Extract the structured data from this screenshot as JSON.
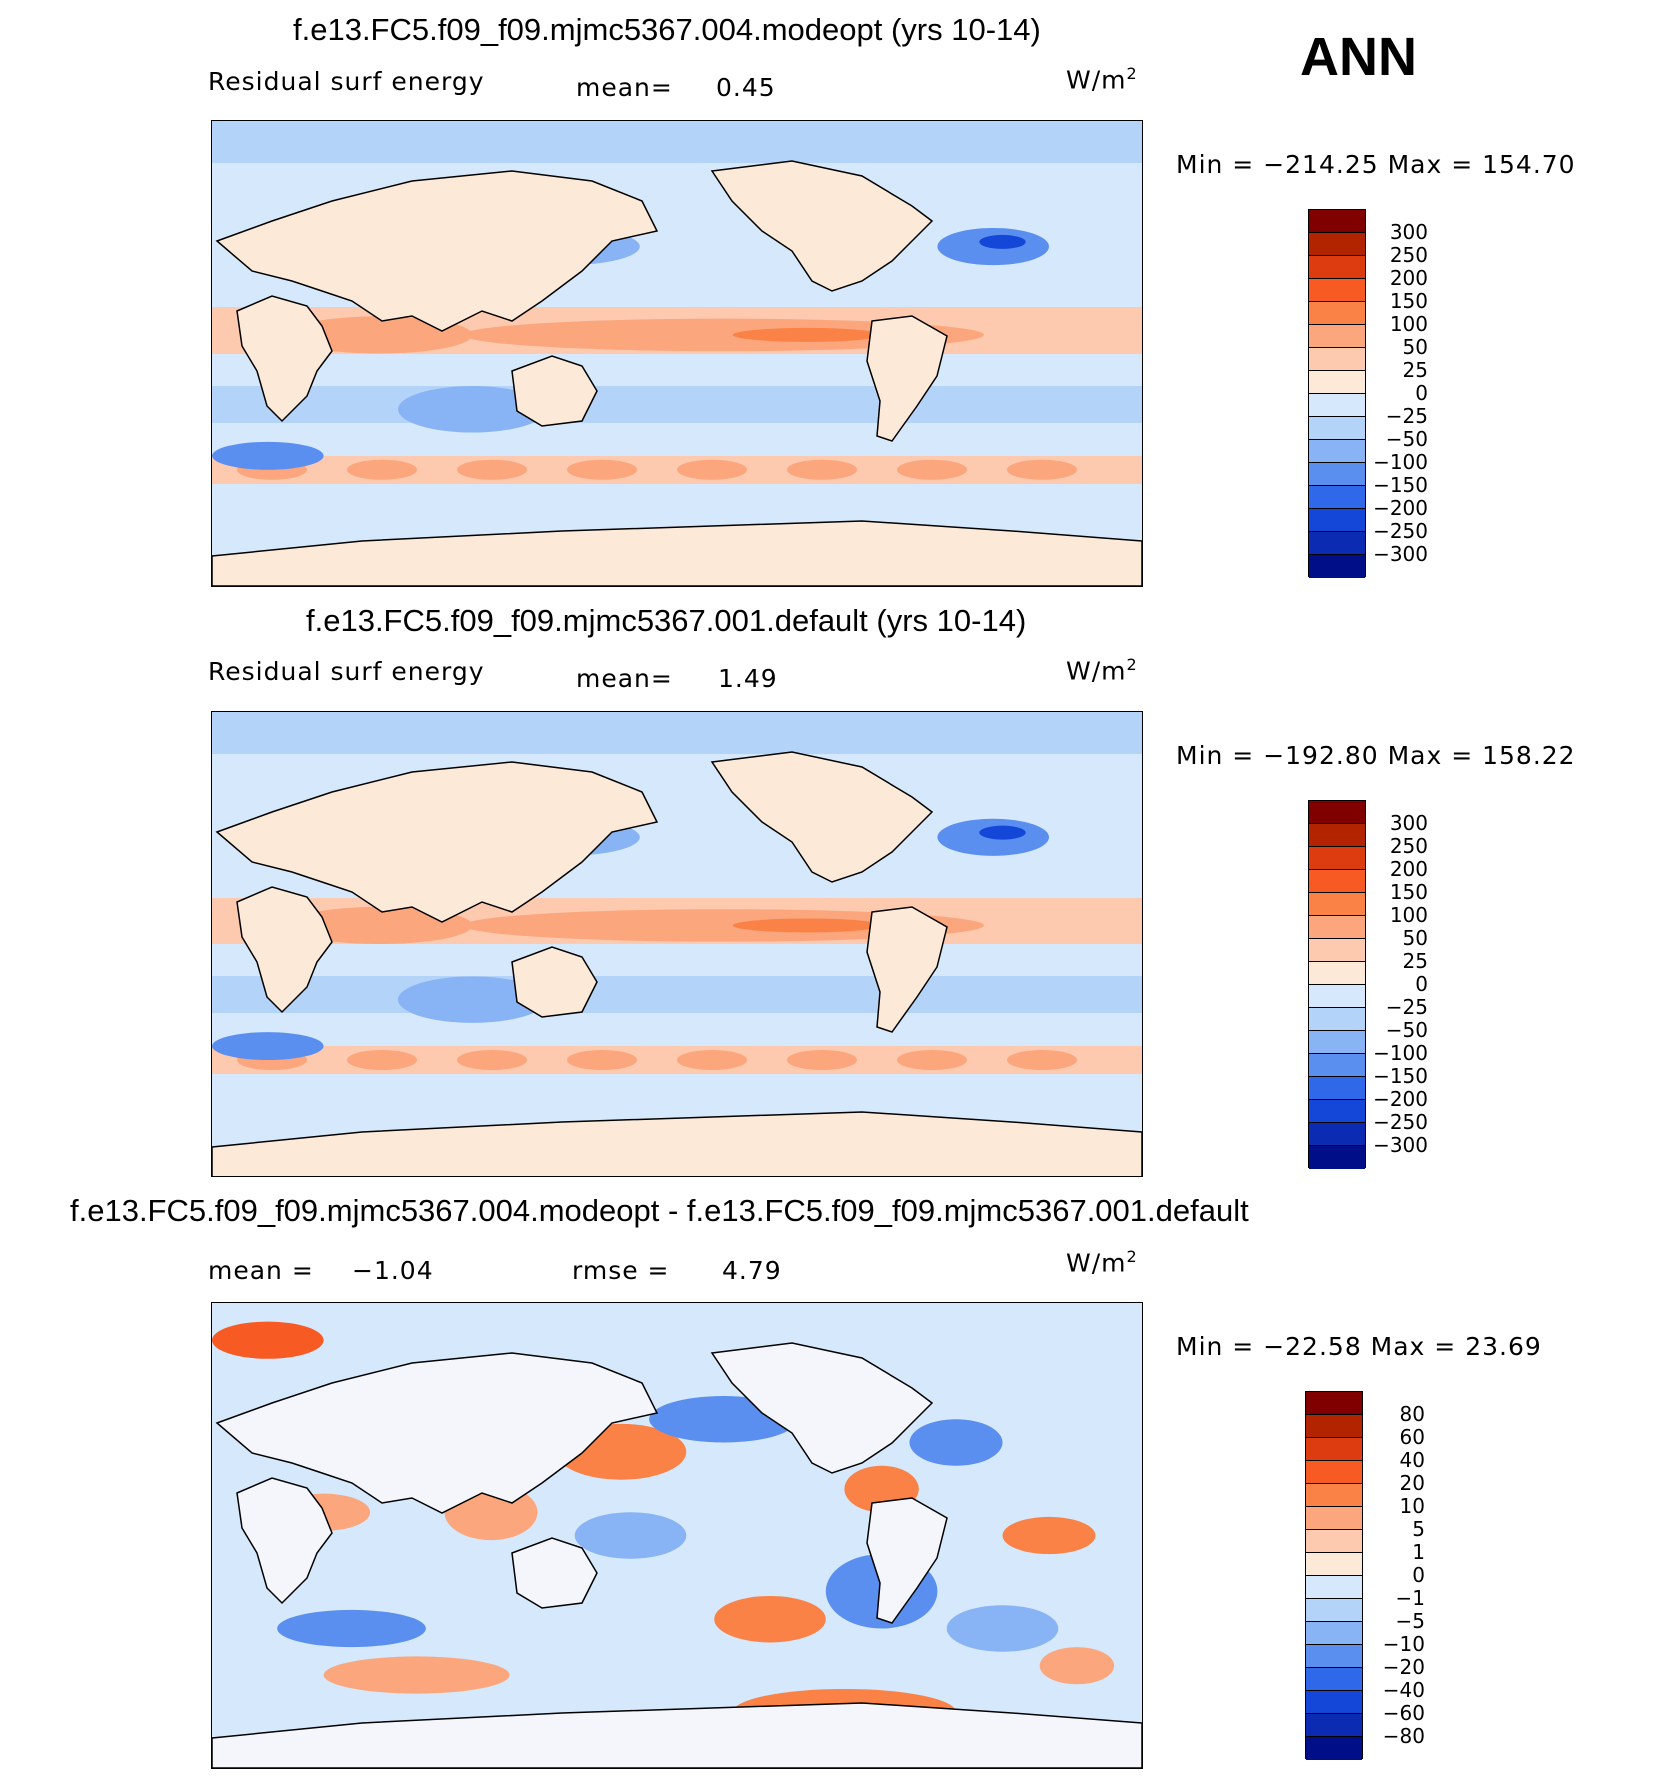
{
  "figure_label": "ANN",
  "units_base": "W/m",
  "units_exp": "2",
  "panels": [
    {
      "title": "f.e13.FC5.f09_f09.mjmc5367.004.modeopt (yrs 10-14)",
      "variable": "Residual surf energy",
      "stat1_label": "mean=",
      "stat1_value": "0.45",
      "minmax": "Min = −214.25 Max = 154.70"
    },
    {
      "title": "f.e13.FC5.f09_f09.mjmc5367.001.default (yrs 10-14)",
      "variable": "Residual surf energy",
      "stat1_label": "mean=",
      "stat1_value": "1.49",
      "minmax": "Min = −192.80 Max = 158.22"
    },
    {
      "title": "f.e13.FC5.f09_f09.mjmc5367.004.modeopt - f.e13.FC5.f09_f09.mjmc5367.001.default",
      "stat1_label": "mean =",
      "stat1_value": "−1.04",
      "stat2_label": "rmse =",
      "stat2_value": "4.79",
      "minmax": "Min = −22.58 Max =  23.69"
    }
  ],
  "colors": {
    "scale": [
      "#800000",
      "#b22300",
      "#dc3c0f",
      "#f75a23",
      "#fa8246",
      "#fba67c",
      "#fdcab0",
      "#fde9d8",
      "#d6e8fb",
      "#b4d3f8",
      "#88b3f5",
      "#5a8ff0",
      "#2f68e8",
      "#1446d8",
      "#0a2bb2",
      "#000f88"
    ],
    "land_line": "#000000"
  },
  "chart_data": [
    {
      "type": "heatmap",
      "title": "f.e13.FC5.f09_f09.mjmc5367.004.modeopt (yrs 10-14)",
      "variable": "Residual surf energy",
      "units": "W/m2",
      "mean": 0.45,
      "min": -214.25,
      "max": 154.7,
      "colorbar_levels": [
        "300",
        "250",
        "200",
        "150",
        "100",
        "50",
        "25",
        "0",
        "−25",
        "−50",
        "−100",
        "−150",
        "−200",
        "−250",
        "−300"
      ]
    },
    {
      "type": "heatmap",
      "title": "f.e13.FC5.f09_f09.mjmc5367.001.default (yrs 10-14)",
      "variable": "Residual surf energy",
      "units": "W/m2",
      "mean": 1.49,
      "min": -192.8,
      "max": 158.22,
      "colorbar_levels": [
        "300",
        "250",
        "200",
        "150",
        "100",
        "50",
        "25",
        "0",
        "−25",
        "−50",
        "−100",
        "−150",
        "−200",
        "−250",
        "−300"
      ]
    },
    {
      "type": "heatmap",
      "title": "f.e13.FC5.f09_f09.mjmc5367.004.modeopt - f.e13.FC5.f09_f09.mjmc5367.001.default",
      "units": "W/m2",
      "mean": -1.04,
      "rmse": 4.79,
      "min": -22.58,
      "max": 23.69,
      "colorbar_levels": [
        "80",
        "60",
        "40",
        "20",
        "10",
        "5",
        "1",
        "0",
        "−1",
        "−5",
        "−10",
        "−20",
        "−40",
        "−60",
        "−80"
      ]
    }
  ]
}
